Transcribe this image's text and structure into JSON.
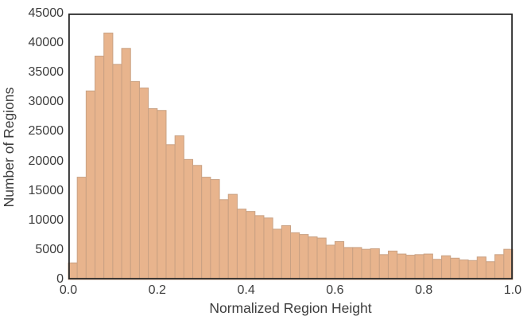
{
  "figure": {
    "background": "#ffffff",
    "bar_fill": "#e8b48d",
    "bar_edge": "#c9a183",
    "spine_color": "#262626",
    "text_color": "#3d3d3d"
  },
  "chart_data": {
    "type": "bar",
    "subtype": "histogram",
    "title": "",
    "xlabel": "Normalized Region Height",
    "ylabel": "Number of Regions",
    "xlim": [
      0.0,
      1.0
    ],
    "ylim": [
      0,
      45000
    ],
    "grid": false,
    "legend": false,
    "bin_start": 0.0,
    "bin_width": 0.02,
    "x_tick_values": [
      0.0,
      0.2,
      0.4,
      0.6,
      0.8,
      1.0
    ],
    "x_tick_labels": [
      "0.0",
      "0.2",
      "0.4",
      "0.6",
      "0.8",
      "1.0"
    ],
    "y_tick_values": [
      0,
      5000,
      10000,
      15000,
      20000,
      25000,
      30000,
      35000,
      40000,
      45000
    ],
    "y_tick_labels": [
      "0",
      "5000",
      "10000",
      "15000",
      "20000",
      "25000",
      "30000",
      "35000",
      "40000",
      "45000"
    ],
    "counts": [
      2800,
      17300,
      31900,
      37800,
      41700,
      36400,
      39100,
      33500,
      32400,
      28900,
      28600,
      22800,
      24300,
      20300,
      19300,
      17300,
      16900,
      13500,
      14400,
      11900,
      11500,
      10800,
      10400,
      8500,
      9100,
      7900,
      7600,
      7200,
      7000,
      5800,
      6400,
      5400,
      5400,
      5100,
      5200,
      4200,
      4800,
      4300,
      4100,
      4200,
      4300,
      3400,
      4000,
      3600,
      3300,
      3200,
      3800,
      3000,
      4200,
      5100
    ]
  }
}
